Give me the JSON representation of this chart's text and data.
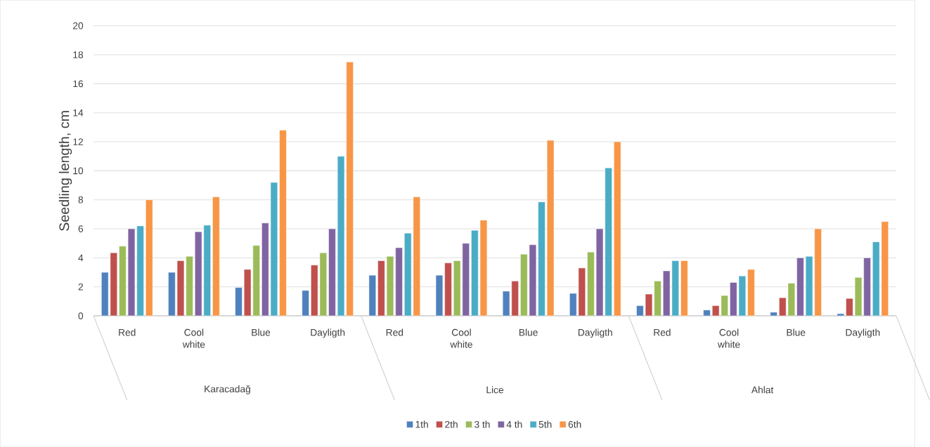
{
  "chart_data": {
    "type": "bar",
    "ylabel": "Seedling length, cm",
    "categories": [
      "Red",
      "Cool white",
      "Blue",
      "Dayligth",
      "Red",
      "Cool white",
      "Blue",
      "Dayligth",
      "Red",
      "Cool white",
      "Blue",
      "Dayligth"
    ],
    "annotations": [
      "Karacadağ",
      "Lice",
      "Ahlat"
    ],
    "series": [
      {
        "name": "1th",
        "color": "#4f81bd",
        "values": [
          3.0,
          3.0,
          1.95,
          1.75,
          2.8,
          2.8,
          1.7,
          1.55,
          0.7,
          0.4,
          0.25,
          0.15
        ]
      },
      {
        "name": "2th",
        "color": "#c0504d",
        "values": [
          4.35,
          3.8,
          3.2,
          3.5,
          3.8,
          3.65,
          2.4,
          3.3,
          1.5,
          0.7,
          1.25,
          1.2
        ]
      },
      {
        "name": "3 th",
        "color": "#9bbb59",
        "values": [
          4.8,
          4.1,
          4.85,
          4.35,
          4.1,
          3.8,
          4.25,
          4.4,
          2.4,
          1.4,
          2.25,
          2.65
        ]
      },
      {
        "name": "4 th",
        "color": "#8064a2",
        "values": [
          6.0,
          5.8,
          6.4,
          6.0,
          4.7,
          5.0,
          4.9,
          6.0,
          3.1,
          2.3,
          4.0,
          4.0
        ]
      },
      {
        "name": "5th",
        "color": "#4bacc6",
        "values": [
          6.2,
          6.25,
          9.2,
          11.0,
          5.7,
          5.9,
          7.85,
          10.2,
          3.8,
          2.75,
          4.1,
          5.1
        ]
      },
      {
        "name": "6th",
        "color": "#f79646",
        "values": [
          8.0,
          8.2,
          12.8,
          17.5,
          8.2,
          6.6,
          12.1,
          12.0,
          3.8,
          3.2,
          6.0,
          6.5
        ]
      }
    ],
    "ylim": [
      0,
      20
    ],
    "yticks": [
      0,
      2,
      4,
      6,
      8,
      10,
      12,
      14,
      16,
      18,
      20
    ],
    "grid": "y",
    "legend": "bottom"
  }
}
